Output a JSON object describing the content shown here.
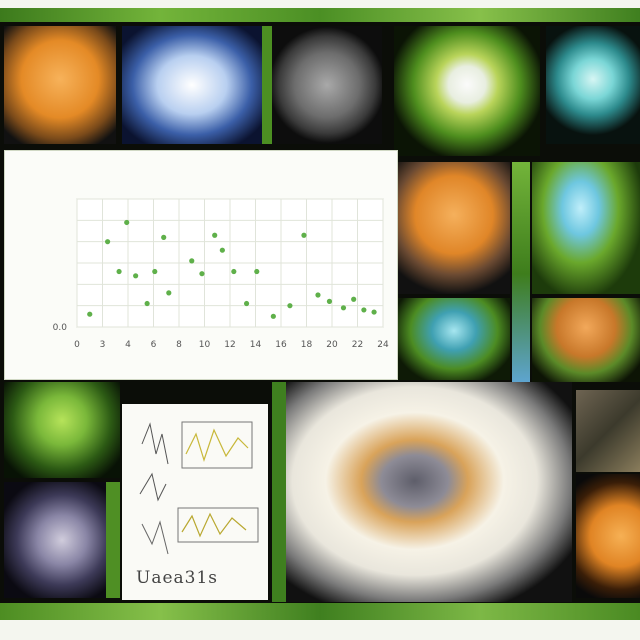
{
  "collage": {
    "chart_caption": "",
    "chart_note": "plot with scattered points"
  },
  "chart_data": {
    "type": "scatter",
    "title": "",
    "xlabel": "",
    "ylabel": "",
    "xticks": [
      "0",
      "3",
      "4",
      "6",
      "8",
      "10",
      "12",
      "14",
      "16",
      "18",
      "20",
      "22",
      "24"
    ],
    "yticks": [
      "0.0",
      "",
      "",
      "",
      "",
      "",
      ""
    ],
    "xlim": [
      0,
      24
    ],
    "ylim": [
      0,
      6
    ],
    "grid": true,
    "series": [
      {
        "color": "#5fb04a",
        "points": [
          [
            1,
            0.6
          ],
          [
            2.4,
            4.0
          ],
          [
            3.3,
            2.6
          ],
          [
            3.9,
            4.9
          ],
          [
            4.6,
            2.4
          ],
          [
            5.5,
            1.1
          ],
          [
            6.1,
            2.6
          ],
          [
            6.8,
            4.2
          ],
          [
            7.2,
            1.6
          ],
          [
            9.0,
            3.1
          ],
          [
            9.8,
            2.5
          ],
          [
            10.8,
            4.3
          ],
          [
            11.4,
            3.6
          ],
          [
            12.3,
            2.6
          ],
          [
            13.3,
            1.1
          ],
          [
            14.1,
            2.6
          ],
          [
            15.4,
            0.5
          ],
          [
            16.7,
            1.0
          ],
          [
            17.8,
            4.3
          ],
          [
            18.9,
            1.5
          ],
          [
            19.8,
            1.2
          ],
          [
            20.9,
            0.9
          ],
          [
            21.7,
            1.3
          ],
          [
            22.5,
            0.8
          ],
          [
            23.3,
            0.7
          ]
        ]
      }
    ]
  },
  "colors": {
    "accent_green": "#6fb43a",
    "chart_point": "#5fb04a"
  }
}
